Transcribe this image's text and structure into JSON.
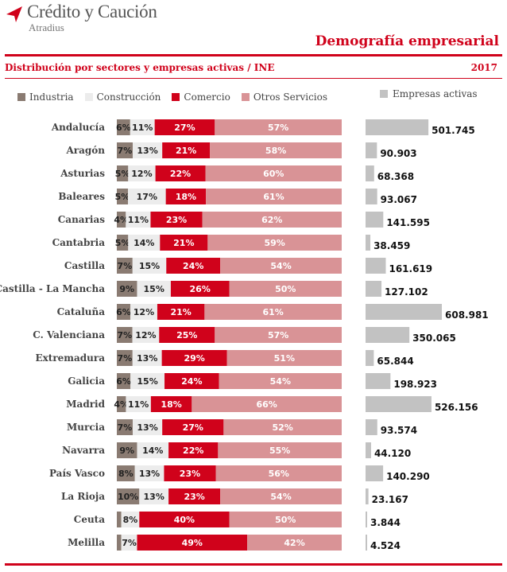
{
  "header": {
    "brand": "Crédito y Caución",
    "brand_sub": "Atradius",
    "report_title": "Demografía empresarial",
    "subtitle": "Distribución por sectores y empresas activas / INE",
    "year": "2017"
  },
  "colors": {
    "accent": "#d0021b",
    "industria": "#8a7b72",
    "construccion": "#ececec",
    "comercio": "#d0021b",
    "otros": "#d99396",
    "empresas": "#c2c2c2"
  },
  "chart_data": {
    "type": "bar",
    "stacked": true,
    "orientation": "horizontal",
    "percent_scale": 100,
    "legend": [
      "Industria",
      "Construcción",
      "Comercio",
      "Otros Servicios"
    ],
    "legend_right": "Empresas activas",
    "categories": [
      "Andalucía",
      "Aragón",
      "Asturias",
      "Baleares",
      "Canarias",
      "Cantabria",
      "Castilla",
      "Castilla - La Mancha",
      "Cataluña",
      "C. Valenciana",
      "Extremadura",
      "Galicia",
      "Madrid",
      "Murcia",
      "Navarra",
      "País Vasco",
      "La Rioja",
      "Ceuta",
      "Melilla"
    ],
    "series": [
      {
        "name": "Industria",
        "values": [
          6,
          7,
          5,
          5,
          4,
          5,
          7,
          9,
          6,
          7,
          7,
          6,
          4,
          7,
          9,
          8,
          10,
          2,
          2
        ],
        "labels": [
          "6%",
          "7%",
          "5%",
          "5%",
          "4%",
          "5%",
          "7%",
          "9%",
          "6%",
          "7%",
          "7%",
          "6%",
          "4%",
          "7%",
          "9%",
          "8%",
          "10%",
          "",
          ""
        ]
      },
      {
        "name": "Construcción",
        "values": [
          11,
          13,
          12,
          17,
          11,
          14,
          15,
          15,
          12,
          12,
          13,
          15,
          11,
          13,
          14,
          13,
          13,
          8,
          7
        ],
        "labels": [
          "11%",
          "13%",
          "12%",
          "17%",
          "11%",
          "14%",
          "15%",
          "15%",
          "12%",
          "12%",
          "13%",
          "15%",
          "11%",
          "13%",
          "14%",
          "13%",
          "13%",
          "8%",
          "7%"
        ]
      },
      {
        "name": "Comercio",
        "values": [
          27,
          21,
          22,
          18,
          23,
          21,
          24,
          26,
          21,
          25,
          29,
          24,
          18,
          27,
          22,
          23,
          23,
          40,
          49
        ],
        "labels": [
          "27%",
          "21%",
          "22%",
          "18%",
          "23%",
          "21%",
          "24%",
          "26%",
          "21%",
          "25%",
          "29%",
          "24%",
          "18%",
          "27%",
          "22%",
          "23%",
          "23%",
          "40%",
          "49%"
        ]
      },
      {
        "name": "Otros Servicios",
        "values": [
          57,
          58,
          60,
          61,
          62,
          59,
          54,
          50,
          61,
          57,
          51,
          54,
          66,
          52,
          55,
          56,
          54,
          50,
          42
        ],
        "labels": [
          "57%",
          "58%",
          "60%",
          "61%",
          "62%",
          "59%",
          "54%",
          "50%",
          "61%",
          "57%",
          "51%",
          "54%",
          "66%",
          "52%",
          "55%",
          "56%",
          "54%",
          "50%",
          "42%"
        ]
      }
    ],
    "empresas_activas": {
      "name": "Empresas activas",
      "values": [
        501745,
        90903,
        68368,
        93067,
        141595,
        38459,
        161619,
        127102,
        608981,
        350065,
        65844,
        198923,
        526156,
        93574,
        44120,
        140290,
        23167,
        3844,
        4524
      ],
      "labels": [
        "501.745",
        "90.903",
        "68.368",
        "93.067",
        "141.595",
        "38.459",
        "161.619",
        "127.102",
        "608.981",
        "350.065",
        "65.844",
        "198.923",
        "526.156",
        "93.574",
        "44.120",
        "140.290",
        "23.167",
        "3.844",
        "4.524"
      ]
    }
  }
}
